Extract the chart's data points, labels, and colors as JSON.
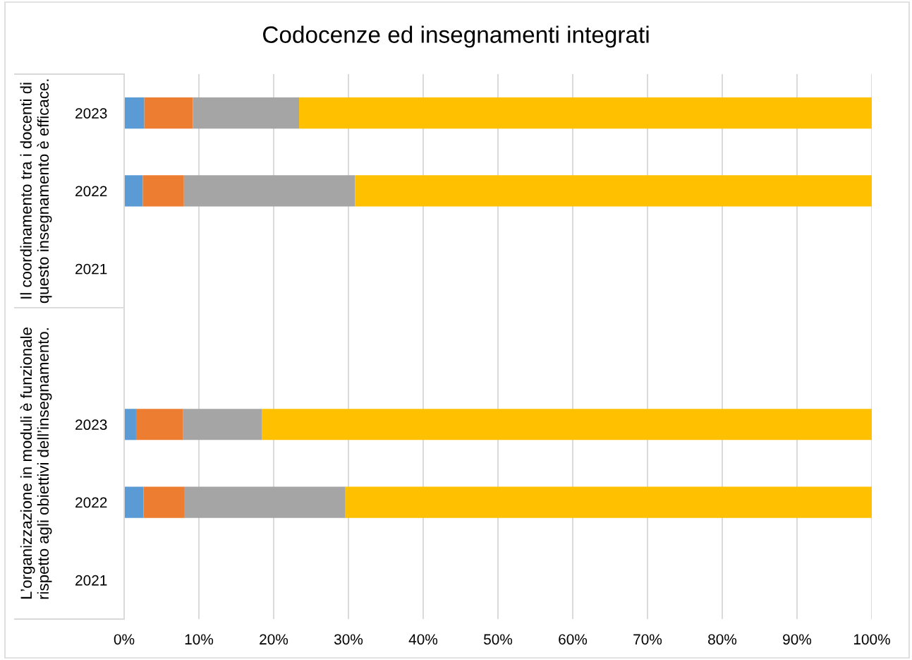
{
  "chart_data": {
    "type": "bar",
    "orientation": "horizontal",
    "stacked": true,
    "title": "Codocenze ed insegnamenti integrati",
    "categories": [
      "2023",
      "2022",
      "2021",
      null,
      "2023",
      "2022",
      "2021"
    ],
    "series": [
      {
        "color": "#5b9bd5",
        "values": [
          2.7,
          2.5,
          null,
          null,
          1.6,
          2.6,
          null
        ]
      },
      {
        "color": "#ed7d31",
        "values": [
          6.5,
          5.5,
          null,
          null,
          6.3,
          5.5,
          null
        ]
      },
      {
        "color": "#a5a5a5",
        "values": [
          14.2,
          22.9,
          null,
          null,
          10.5,
          21.5,
          null
        ]
      },
      {
        "color": "#ffc000",
        "values": [
          76.6,
          69.1,
          null,
          null,
          81.6,
          70.4,
          null
        ]
      }
    ],
    "xlim": [
      0,
      100
    ],
    "xticks": [
      {
        "value": 0,
        "label": "0%"
      },
      {
        "value": 10,
        "label": "10%"
      },
      {
        "value": 20,
        "label": "20%"
      },
      {
        "value": 30,
        "label": "30%"
      },
      {
        "value": 40,
        "label": "40%"
      },
      {
        "value": 50,
        "label": "50%"
      },
      {
        "value": 60,
        "label": "60%"
      },
      {
        "value": 70,
        "label": "70%"
      },
      {
        "value": 80,
        "label": "80%"
      },
      {
        "value": 90,
        "label": "90%"
      },
      {
        "value": 100,
        "label": "100%"
      }
    ],
    "grid": "x",
    "annotations": [
      "Il coordinamento tra i docenti di\nquesto insegnamento è efficace.",
      "L’organizzazione in moduli è funzionale\nrispetto agli obiettivi dell’insegnamento."
    ]
  }
}
